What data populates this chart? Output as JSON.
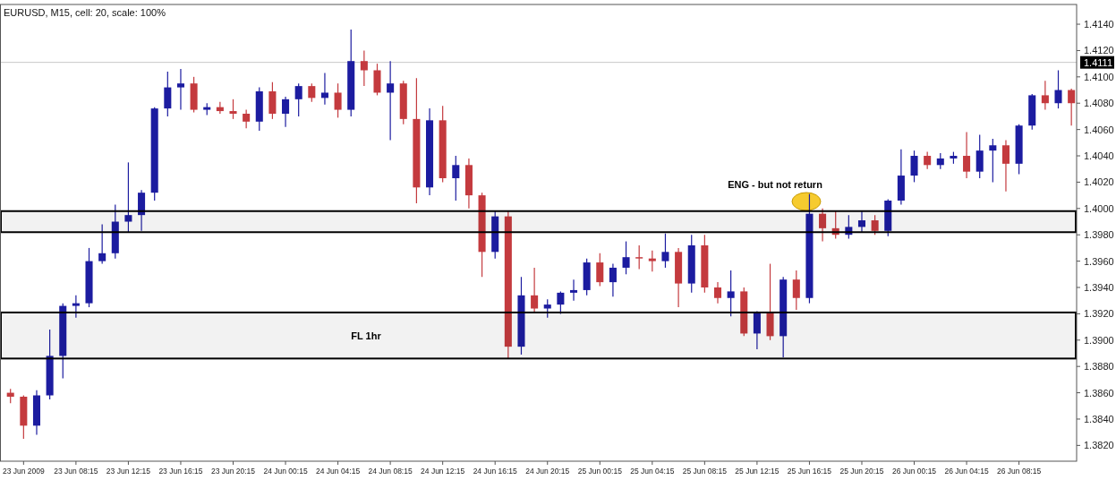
{
  "chart_data": {
    "type": "candlestick",
    "title": "EURUSD, M15, cell: 20, scale: 100%",
    "categories": [
      null,
      "23 Jun 2009",
      null,
      null,
      null,
      "23 Jun 08:15",
      null,
      null,
      null,
      "23 Jun 12:15",
      null,
      null,
      null,
      "23 Jun 16:15",
      null,
      null,
      null,
      "23 Jun 20:15",
      null,
      null,
      null,
      "24 Jun 00:15",
      null,
      null,
      null,
      "24 Jun 04:15",
      null,
      null,
      null,
      "24 Jun 08:15",
      null,
      null,
      null,
      "24 Jun 12:15",
      null,
      null,
      null,
      "24 Jun 16:15",
      null,
      null,
      null,
      "24 Jun 20:15",
      null,
      null,
      null,
      "25 Jun 00:15",
      null,
      null,
      null,
      "25 Jun 04:15",
      null,
      null,
      null,
      "25 Jun 08:15",
      null,
      null,
      null,
      "25 Jun 12:15",
      null,
      null,
      null,
      "25 Jun 16:15",
      null,
      null,
      null,
      "25 Jun 20:15",
      null,
      null,
      null,
      "26 Jun 00:15",
      null,
      null,
      null,
      "26 Jun 04:15",
      null,
      null,
      null,
      "26 Jun 08:15",
      null,
      null,
      null,
      null
    ],
    "ohlc": [
      [
        1.386,
        1.3863,
        1.3852,
        1.3857
      ],
      [
        1.3857,
        1.3858,
        1.3825,
        1.3835
      ],
      [
        1.3835,
        1.3862,
        1.3828,
        1.3858
      ],
      [
        1.3858,
        1.3908,
        1.3855,
        1.3888
      ],
      [
        1.3888,
        1.3928,
        1.3871,
        1.3926
      ],
      [
        1.3926,
        1.3934,
        1.3917,
        1.3928
      ],
      [
        1.3928,
        1.397,
        1.3925,
        1.396
      ],
      [
        1.396,
        1.3988,
        1.3958,
        1.3966
      ],
      [
        1.3966,
        1.4003,
        1.3962,
        1.399
      ],
      [
        1.399,
        1.4035,
        1.3982,
        1.3995
      ],
      [
        1.3995,
        1.4014,
        1.3983,
        1.4012
      ],
      [
        1.4012,
        1.4077,
        1.4006,
        1.4076
      ],
      [
        1.4076,
        1.4104,
        1.407,
        1.4092
      ],
      [
        1.4092,
        1.4106,
        1.4075,
        1.4095
      ],
      [
        1.4095,
        1.41,
        1.4073,
        1.4075
      ],
      [
        1.4075,
        1.408,
        1.4071,
        1.4077
      ],
      [
        1.4077,
        1.4081,
        1.4072,
        1.4074
      ],
      [
        1.4074,
        1.4083,
        1.4068,
        1.4072
      ],
      [
        1.4072,
        1.4075,
        1.4061,
        1.4066
      ],
      [
        1.4066,
        1.4092,
        1.4059,
        1.4089
      ],
      [
        1.4089,
        1.4096,
        1.4068,
        1.4072
      ],
      [
        1.4072,
        1.4085,
        1.4062,
        1.4083
      ],
      [
        1.4083,
        1.4095,
        1.407,
        1.4093
      ],
      [
        1.4093,
        1.4095,
        1.4081,
        1.4084
      ],
      [
        1.4084,
        1.4103,
        1.4079,
        1.4088
      ],
      [
        1.4088,
        1.4095,
        1.4069,
        1.4075
      ],
      [
        1.4075,
        1.4136,
        1.407,
        1.4112
      ],
      [
        1.4112,
        1.412,
        1.4093,
        1.4105
      ],
      [
        1.4105,
        1.411,
        1.4086,
        1.4088
      ],
      [
        1.4088,
        1.4112,
        1.4052,
        1.4095
      ],
      [
        1.4095,
        1.4097,
        1.4064,
        1.4068
      ],
      [
        1.4068,
        1.4099,
        1.4004,
        1.4016
      ],
      [
        1.4016,
        1.4076,
        1.401,
        1.4067
      ],
      [
        1.4067,
        1.4078,
        1.402,
        1.4023
      ],
      [
        1.4023,
        1.404,
        1.4006,
        1.4033
      ],
      [
        1.4033,
        1.4038,
        1.4,
        1.401
      ],
      [
        1.401,
        1.4012,
        1.3948,
        1.3967
      ],
      [
        1.3967,
        1.3998,
        1.3962,
        1.3994
      ],
      [
        1.3994,
        1.3998,
        1.3886,
        1.3895
      ],
      [
        1.3895,
        1.3948,
        1.3889,
        1.3934
      ],
      [
        1.3934,
        1.3955,
        1.3921,
        1.3924
      ],
      [
        1.3924,
        1.3931,
        1.3917,
        1.3927
      ],
      [
        1.3927,
        1.3937,
        1.392,
        1.3936
      ],
      [
        1.3936,
        1.3946,
        1.393,
        1.3938
      ],
      [
        1.3938,
        1.3962,
        1.3934,
        1.3959
      ],
      [
        1.3959,
        1.3966,
        1.3941,
        1.3944
      ],
      [
        1.3944,
        1.3958,
        1.3933,
        1.3955
      ],
      [
        1.3955,
        1.3975,
        1.395,
        1.3963
      ],
      [
        1.3963,
        1.3972,
        1.3954,
        1.3962
      ],
      [
        1.3962,
        1.3968,
        1.3952,
        1.396
      ],
      [
        1.396,
        1.3981,
        1.3955,
        1.3967
      ],
      [
        1.3967,
        1.397,
        1.3925,
        1.3943
      ],
      [
        1.3943,
        1.398,
        1.3936,
        1.3972
      ],
      [
        1.3972,
        1.398,
        1.3936,
        1.394
      ],
      [
        1.394,
        1.3944,
        1.3928,
        1.3932
      ],
      [
        1.3932,
        1.3953,
        1.3918,
        1.3937
      ],
      [
        1.3937,
        1.394,
        1.3903,
        1.3905
      ],
      [
        1.3905,
        1.3922,
        1.3893,
        1.3921
      ],
      [
        1.3921,
        1.3958,
        1.39,
        1.3903
      ],
      [
        1.3903,
        1.3948,
        1.3887,
        1.3946
      ],
      [
        1.3946,
        1.3953,
        1.3923,
        1.3932
      ],
      [
        1.3932,
        1.4011,
        1.3928,
        1.3996
      ],
      [
        1.3996,
        1.4,
        1.3975,
        1.3985
      ],
      [
        1.3985,
        1.3998,
        1.3977,
        1.398
      ],
      [
        1.398,
        1.3995,
        1.3977,
        1.3986
      ],
      [
        1.3986,
        1.3998,
        1.3982,
        1.3991
      ],
      [
        1.3991,
        1.3995,
        1.398,
        1.3983
      ],
      [
        1.3983,
        1.4007,
        1.3979,
        1.4006
      ],
      [
        1.4006,
        1.4045,
        1.4003,
        1.4025
      ],
      [
        1.4025,
        1.4044,
        1.402,
        1.404
      ],
      [
        1.404,
        1.4043,
        1.403,
        1.4033
      ],
      [
        1.4033,
        1.4042,
        1.403,
        1.4038
      ],
      [
        1.4038,
        1.4043,
        1.4034,
        1.404
      ],
      [
        1.404,
        1.4058,
        1.4023,
        1.4028
      ],
      [
        1.4028,
        1.4056,
        1.4023,
        1.4044
      ],
      [
        1.4044,
        1.4053,
        1.402,
        1.4048
      ],
      [
        1.4048,
        1.4052,
        1.4013,
        1.4034
      ],
      [
        1.4034,
        1.4064,
        1.4026,
        1.4063
      ],
      [
        1.4063,
        1.4087,
        1.406,
        1.4086
      ],
      [
        1.4086,
        1.4097,
        1.4075,
        1.408
      ],
      [
        1.408,
        1.4105,
        1.4076,
        1.409
      ],
      [
        1.409,
        1.4091,
        1.4063,
        1.408
      ]
    ],
    "colors": [
      "#c43a3e",
      "#c43a3e",
      "#1c1ca0",
      "#1c1ca0",
      "#1c1ca0",
      "#1c1ca0",
      "#1c1ca0",
      "#1c1ca0",
      "#1c1ca0",
      "#1c1ca0",
      "#1c1ca0",
      "#1c1ca0",
      "#1c1ca0",
      "#1c1ca0",
      "#c43a3e",
      "#1c1ca0",
      "#c43a3e",
      "#c43a3e",
      "#c43a3e",
      "#1c1ca0",
      "#c43a3e",
      "#1c1ca0",
      "#1c1ca0",
      "#c43a3e",
      "#1c1ca0",
      "#c43a3e",
      "#1c1ca0",
      "#c43a3e",
      "#c43a3e",
      "#1c1ca0",
      "#c43a3e",
      "#c43a3e",
      "#1c1ca0",
      "#c43a3e",
      "#1c1ca0",
      "#c43a3e",
      "#c43a3e",
      "#1c1ca0",
      "#c43a3e",
      "#1c1ca0",
      "#c43a3e",
      "#1c1ca0",
      "#1c1ca0",
      "#1c1ca0",
      "#1c1ca0",
      "#c43a3e",
      "#1c1ca0",
      "#1c1ca0",
      "#c43a3e",
      "#c43a3e",
      "#1c1ca0",
      "#c43a3e",
      "#1c1ca0",
      "#c43a3e",
      "#c43a3e",
      "#1c1ca0",
      "#c43a3e",
      "#1c1ca0",
      "#c43a3e",
      "#1c1ca0",
      "#c43a3e",
      "#1c1ca0",
      "#c43a3e",
      "#c43a3e",
      "#1c1ca0",
      "#1c1ca0",
      "#c43a3e",
      "#1c1ca0",
      "#1c1ca0",
      "#1c1ca0",
      "#c43a3e",
      "#1c1ca0",
      "#1c1ca0",
      "#c43a3e",
      "#1c1ca0",
      "#1c1ca0",
      "#c43a3e",
      "#1c1ca0",
      "#1c1ca0",
      "#c43a3e",
      "#1c1ca0",
      "#c43a3e"
    ],
    "ylim": [
      1.3808,
      1.4155
    ],
    "yticks": [
      {
        "value": 1.382,
        "label": "1.3820"
      },
      {
        "value": 1.384,
        "label": "1.3840"
      },
      {
        "value": 1.386,
        "label": "1.3860"
      },
      {
        "value": 1.388,
        "label": "1.3880"
      },
      {
        "value": 1.39,
        "label": "1.3900"
      },
      {
        "value": 1.392,
        "label": "1.3920"
      },
      {
        "value": 1.394,
        "label": "1.3940"
      },
      {
        "value": 1.396,
        "label": "1.3960"
      },
      {
        "value": 1.398,
        "label": "1.3980"
      },
      {
        "value": 1.4,
        "label": "1.4000"
      },
      {
        "value": 1.402,
        "label": "1.4020"
      },
      {
        "value": 1.404,
        "label": "1.4040"
      },
      {
        "value": 1.406,
        "label": "1.4060"
      },
      {
        "value": 1.408,
        "label": "1.4080"
      },
      {
        "value": 1.41,
        "label": "1.4100"
      },
      {
        "value": 1.412,
        "label": "1.4120"
      },
      {
        "value": 1.414,
        "label": "1.4140"
      }
    ],
    "ref_lines": [
      {
        "axis": "y",
        "value": 1.4111,
        "label": "1.4111",
        "color": "#c8c8c8"
      }
    ],
    "bands": [
      {
        "axis": "y",
        "from": 1.3886,
        "to": 1.3921,
        "label": "FL 1hr"
      },
      {
        "axis": "y",
        "from": 1.3982,
        "to": 1.3998
      }
    ],
    "annotations": [
      "ENG - but not return"
    ],
    "grid": false
  }
}
